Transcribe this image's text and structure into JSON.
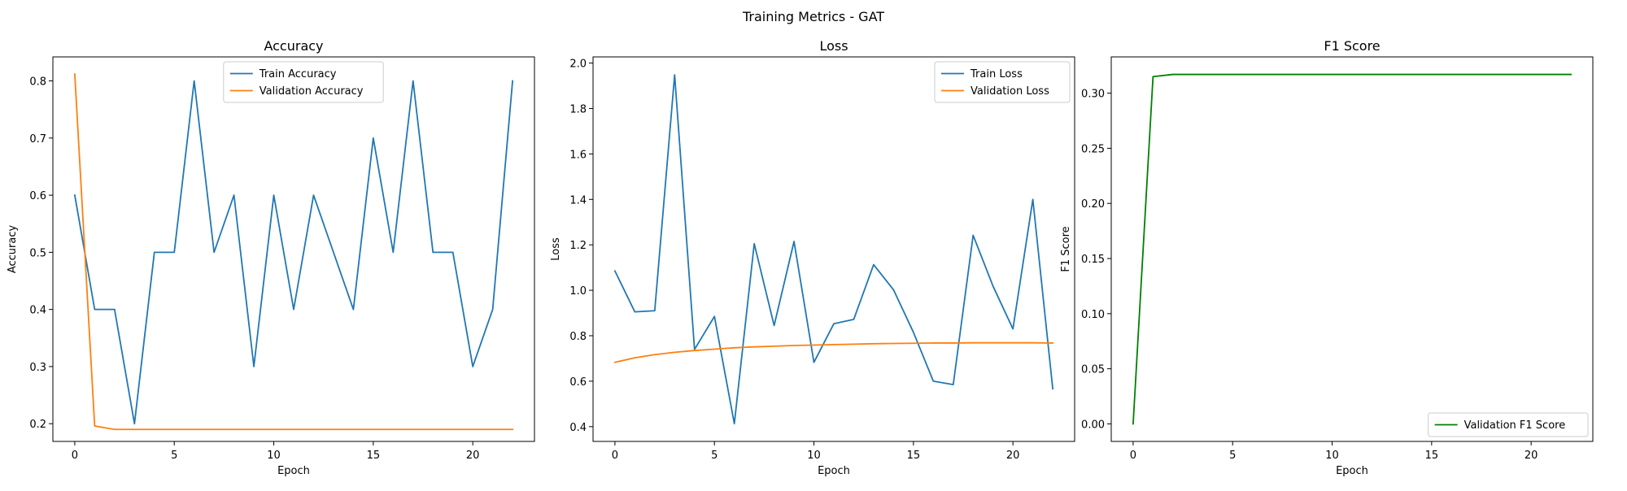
{
  "figure": {
    "suptitle": "Training Metrics - GAT"
  },
  "chart_data": [
    {
      "type": "line",
      "title": "Accuracy",
      "xlabel": "Epoch",
      "ylabel": "Accuracy",
      "xlim": [
        -1.1,
        23.1
      ],
      "ylim": [
        0.169,
        0.842
      ],
      "xticks": [
        0,
        5,
        10,
        15,
        20
      ],
      "xtick_labels": [
        "0",
        "5",
        "10",
        "15",
        "20"
      ],
      "yticks": [
        0.2,
        0.3,
        0.4,
        0.5,
        0.6,
        0.7,
        0.8
      ],
      "ytick_labels": [
        "0.2",
        "0.3",
        "0.4",
        "0.5",
        "0.6",
        "0.7",
        "0.8"
      ],
      "legend": "upper-center",
      "grid": false,
      "x": [
        0,
        1,
        2,
        3,
        4,
        5,
        6,
        7,
        8,
        9,
        10,
        11,
        12,
        13,
        14,
        15,
        16,
        17,
        18,
        19,
        20,
        21,
        22
      ],
      "series": [
        {
          "name": "Train Accuracy",
          "color": "#1f77b4",
          "values": [
            0.6,
            0.4,
            0.4,
            0.2,
            0.5,
            0.5,
            0.8,
            0.5,
            0.6,
            0.3,
            0.6,
            0.4,
            0.6,
            0.5,
            0.4,
            0.7,
            0.5,
            0.8,
            0.5,
            0.5,
            0.3,
            0.4,
            0.8
          ]
        },
        {
          "name": "Validation Accuracy",
          "color": "#ff7f0e",
          "values": [
            0.812,
            0.196,
            0.19,
            0.19,
            0.19,
            0.19,
            0.19,
            0.19,
            0.19,
            0.19,
            0.19,
            0.19,
            0.19,
            0.19,
            0.19,
            0.19,
            0.19,
            0.19,
            0.19,
            0.19,
            0.19,
            0.19,
            0.19
          ]
        }
      ]
    },
    {
      "type": "line",
      "title": "Loss",
      "xlabel": "Epoch",
      "ylabel": "Loss",
      "xlim": [
        -1.1,
        23.1
      ],
      "ylim": [
        0.335,
        2.027
      ],
      "xticks": [
        0,
        5,
        10,
        15,
        20
      ],
      "xtick_labels": [
        "0",
        "5",
        "10",
        "15",
        "20"
      ],
      "yticks": [
        0.4,
        0.6,
        0.8,
        1.0,
        1.2,
        1.4,
        1.6,
        1.8,
        2.0
      ],
      "ytick_labels": [
        "0.4",
        "0.6",
        "0.8",
        "1.0",
        "1.2",
        "1.4",
        "1.6",
        "1.8",
        "2.0"
      ],
      "legend": "upper-right",
      "grid": false,
      "x": [
        0,
        1,
        2,
        3,
        4,
        5,
        6,
        7,
        8,
        9,
        10,
        11,
        12,
        13,
        14,
        15,
        16,
        17,
        18,
        19,
        20,
        21,
        22
      ],
      "series": [
        {
          "name": "Train Loss",
          "color": "#1f77b4",
          "values": [
            1.085,
            0.905,
            0.91,
            1.948,
            0.74,
            0.885,
            0.413,
            1.205,
            0.845,
            1.215,
            0.683,
            0.853,
            0.872,
            1.113,
            1.002,
            0.815,
            0.6,
            0.585,
            1.242,
            1.018,
            0.83,
            1.4,
            0.567
          ]
        },
        {
          "name": "Validation Loss",
          "color": "#ff7f0e",
          "values": [
            0.683,
            0.703,
            0.717,
            0.727,
            0.735,
            0.741,
            0.747,
            0.751,
            0.754,
            0.757,
            0.759,
            0.761,
            0.763,
            0.765,
            0.766,
            0.767,
            0.768,
            0.768,
            0.769,
            0.769,
            0.769,
            0.769,
            0.768
          ]
        }
      ]
    },
    {
      "type": "line",
      "title": "F1 Score",
      "xlabel": "Epoch",
      "ylabel": "F1 Score",
      "xlim": [
        -1.1,
        23.1
      ],
      "ylim": [
        -0.0159,
        0.3329
      ],
      "xticks": [
        0,
        5,
        10,
        15,
        20
      ],
      "xtick_labels": [
        "0",
        "5",
        "10",
        "15",
        "20"
      ],
      "yticks": [
        0.0,
        0.05,
        0.1,
        0.15,
        0.2,
        0.25,
        0.3
      ],
      "ytick_labels": [
        "0.00",
        "0.05",
        "0.10",
        "0.15",
        "0.20",
        "0.25",
        "0.30"
      ],
      "legend": "lower-right",
      "grid": false,
      "x": [
        0,
        1,
        2,
        3,
        4,
        5,
        6,
        7,
        8,
        9,
        10,
        11,
        12,
        13,
        14,
        15,
        16,
        17,
        18,
        19,
        20,
        21,
        22
      ],
      "series": [
        {
          "name": "Validation F1 Score",
          "color": "#008000",
          "values": [
            0.0,
            0.315,
            0.317,
            0.317,
            0.317,
            0.317,
            0.317,
            0.317,
            0.317,
            0.317,
            0.317,
            0.317,
            0.317,
            0.317,
            0.317,
            0.317,
            0.317,
            0.317,
            0.317,
            0.317,
            0.317,
            0.317,
            0.317
          ]
        }
      ]
    }
  ]
}
